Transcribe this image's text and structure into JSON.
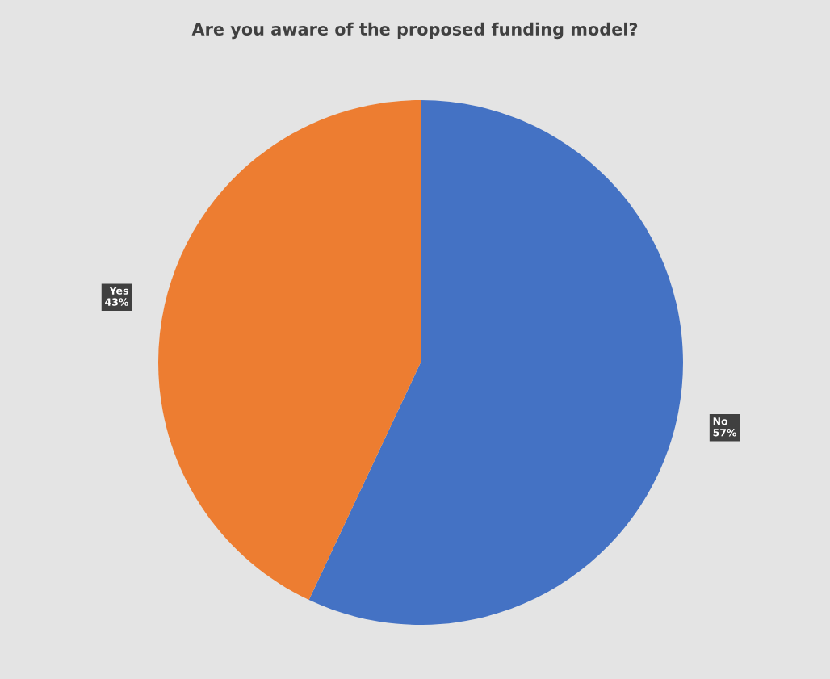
{
  "chart_data": {
    "type": "pie",
    "title": "Are you aware of the proposed funding model?",
    "categories": [
      "No",
      "Yes"
    ],
    "values": [
      57,
      43
    ],
    "value_labels": [
      "57%",
      "43%"
    ],
    "colors": [
      "#4472c4",
      "#ed7d31"
    ]
  }
}
